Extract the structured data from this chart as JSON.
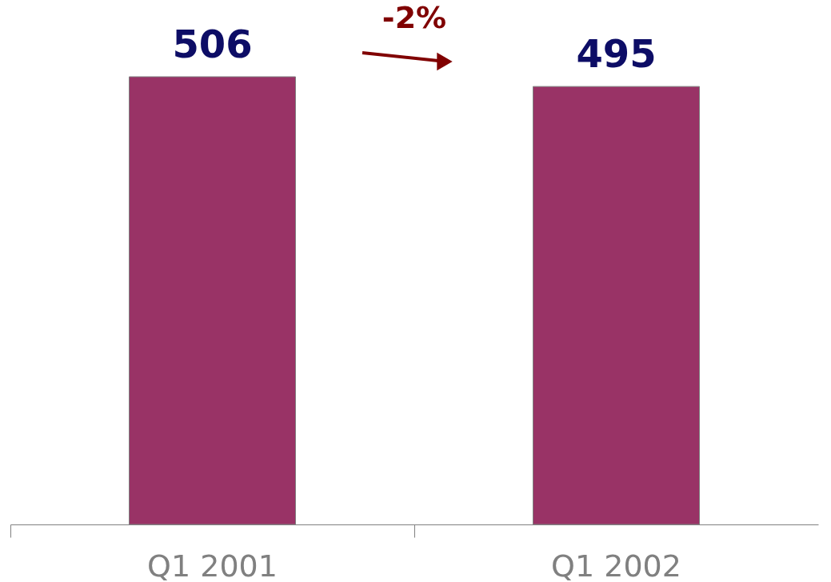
{
  "chart_data": {
    "type": "bar",
    "categories": [
      "Q1 2001",
      "Q1 2002"
    ],
    "values": [
      506,
      495
    ],
    "color": "#993366",
    "data_labels": true,
    "annotations": [
      "-2%"
    ]
  }
}
